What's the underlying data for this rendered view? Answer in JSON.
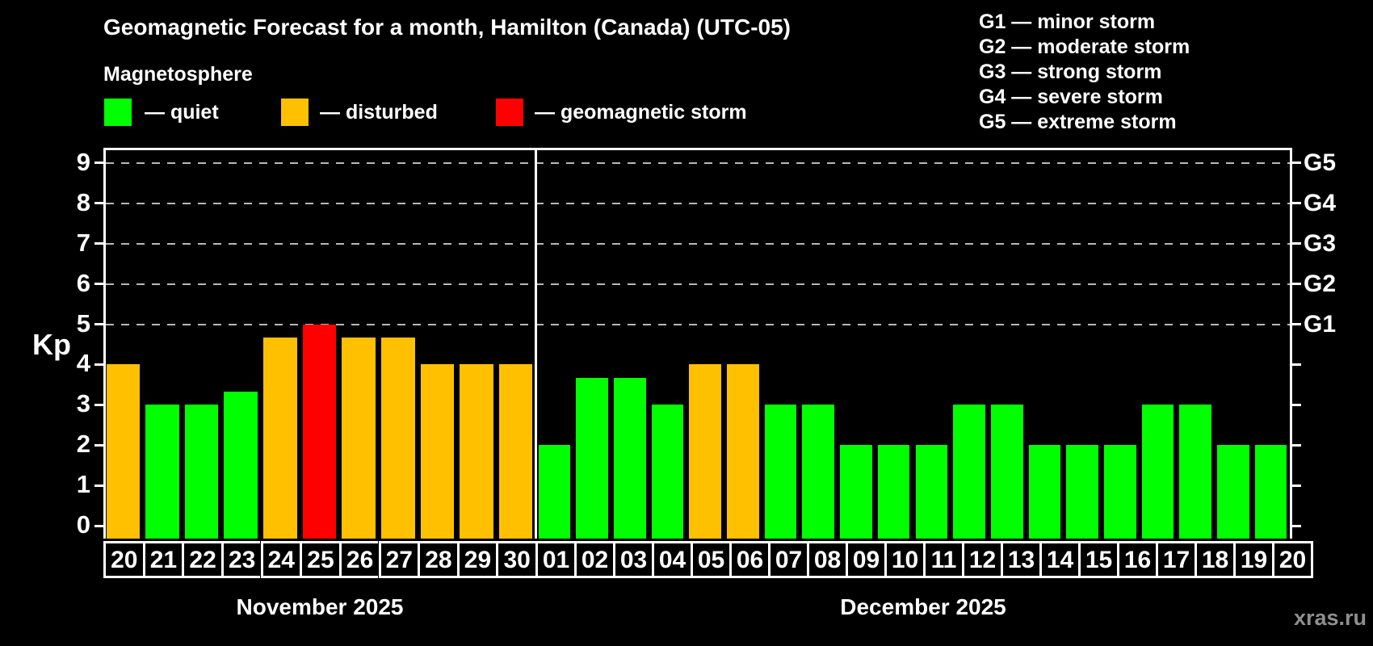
{
  "header": {
    "title": "Geomagnetic Forecast for a month, Hamilton (Canada) (UTC-05)",
    "subtitle": "Magnetosphere"
  },
  "legend": {
    "quiet": {
      "label": "— quiet",
      "color": "#00ff00"
    },
    "disturbed": {
      "label": "— disturbed",
      "color": "#ffc000"
    },
    "storm": {
      "label": "— geomagnetic storm",
      "color": "#ff0000"
    }
  },
  "g_legend": {
    "items": [
      {
        "label": "G1 — minor storm"
      },
      {
        "label": "G2 — moderate storm"
      },
      {
        "label": "G3 — strong storm"
      },
      {
        "label": "G4 — severe storm"
      },
      {
        "label": "G5 — extreme storm"
      }
    ]
  },
  "watermark": "xras.ru",
  "chart_data": {
    "type": "bar",
    "title": "Geomagnetic Forecast for a month, Hamilton (Canada) (UTC-05)",
    "ylabel": "Kp",
    "ylim": [
      0,
      9
    ],
    "yticks": [
      0,
      1,
      2,
      3,
      4,
      5,
      6,
      7,
      8,
      9
    ],
    "gridlines_at": [
      5,
      6,
      7,
      8,
      9
    ],
    "grid_style": "horizontal dashed gray, Kp 5 through 9 only",
    "legend_position": "top-left",
    "right_axis_labels": [
      {
        "label": "G1",
        "kp": 5
      },
      {
        "label": "G2",
        "kp": 6
      },
      {
        "label": "G3",
        "kp": 7
      },
      {
        "label": "G4",
        "kp": 8
      },
      {
        "label": "G5",
        "kp": 9
      }
    ],
    "colors": {
      "quiet": "#00ff00",
      "disturbed": "#ffc000",
      "storm": "#ff0000"
    },
    "months": [
      {
        "name": "November 2025",
        "bars": [
          {
            "day": "20",
            "kp": 4,
            "status": "disturbed"
          },
          {
            "day": "21",
            "kp": 3,
            "status": "quiet"
          },
          {
            "day": "22",
            "kp": 3,
            "status": "quiet"
          },
          {
            "day": "23",
            "kp": 3.33,
            "status": "quiet"
          },
          {
            "day": "24",
            "kp": 4.67,
            "status": "disturbed"
          },
          {
            "day": "25",
            "kp": 5,
            "status": "storm"
          },
          {
            "day": "26",
            "kp": 4.67,
            "status": "disturbed"
          },
          {
            "day": "27",
            "kp": 4.67,
            "status": "disturbed"
          },
          {
            "day": "28",
            "kp": 4,
            "status": "disturbed"
          },
          {
            "day": "29",
            "kp": 4,
            "status": "disturbed"
          },
          {
            "day": "30",
            "kp": 4,
            "status": "disturbed"
          }
        ]
      },
      {
        "name": "December 2025",
        "bars": [
          {
            "day": "01",
            "kp": 2,
            "status": "quiet"
          },
          {
            "day": "02",
            "kp": 3.67,
            "status": "quiet"
          },
          {
            "day": "03",
            "kp": 3.67,
            "status": "quiet"
          },
          {
            "day": "04",
            "kp": 3,
            "status": "quiet"
          },
          {
            "day": "05",
            "kp": 4,
            "status": "disturbed"
          },
          {
            "day": "06",
            "kp": 4,
            "status": "disturbed"
          },
          {
            "day": "07",
            "kp": 3,
            "status": "quiet"
          },
          {
            "day": "08",
            "kp": 3,
            "status": "quiet"
          },
          {
            "day": "09",
            "kp": 2,
            "status": "quiet"
          },
          {
            "day": "10",
            "kp": 2,
            "status": "quiet"
          },
          {
            "day": "11",
            "kp": 2,
            "status": "quiet"
          },
          {
            "day": "12",
            "kp": 3,
            "status": "quiet"
          },
          {
            "day": "13",
            "kp": 3,
            "status": "quiet"
          },
          {
            "day": "14",
            "kp": 2,
            "status": "quiet"
          },
          {
            "day": "15",
            "kp": 2,
            "status": "quiet"
          },
          {
            "day": "16",
            "kp": 2,
            "status": "quiet"
          },
          {
            "day": "17",
            "kp": 3,
            "status": "quiet"
          },
          {
            "day": "18",
            "kp": 3,
            "status": "quiet"
          },
          {
            "day": "19",
            "kp": 2,
            "status": "quiet"
          },
          {
            "day": "20",
            "kp": 2,
            "status": "quiet"
          }
        ]
      }
    ]
  }
}
